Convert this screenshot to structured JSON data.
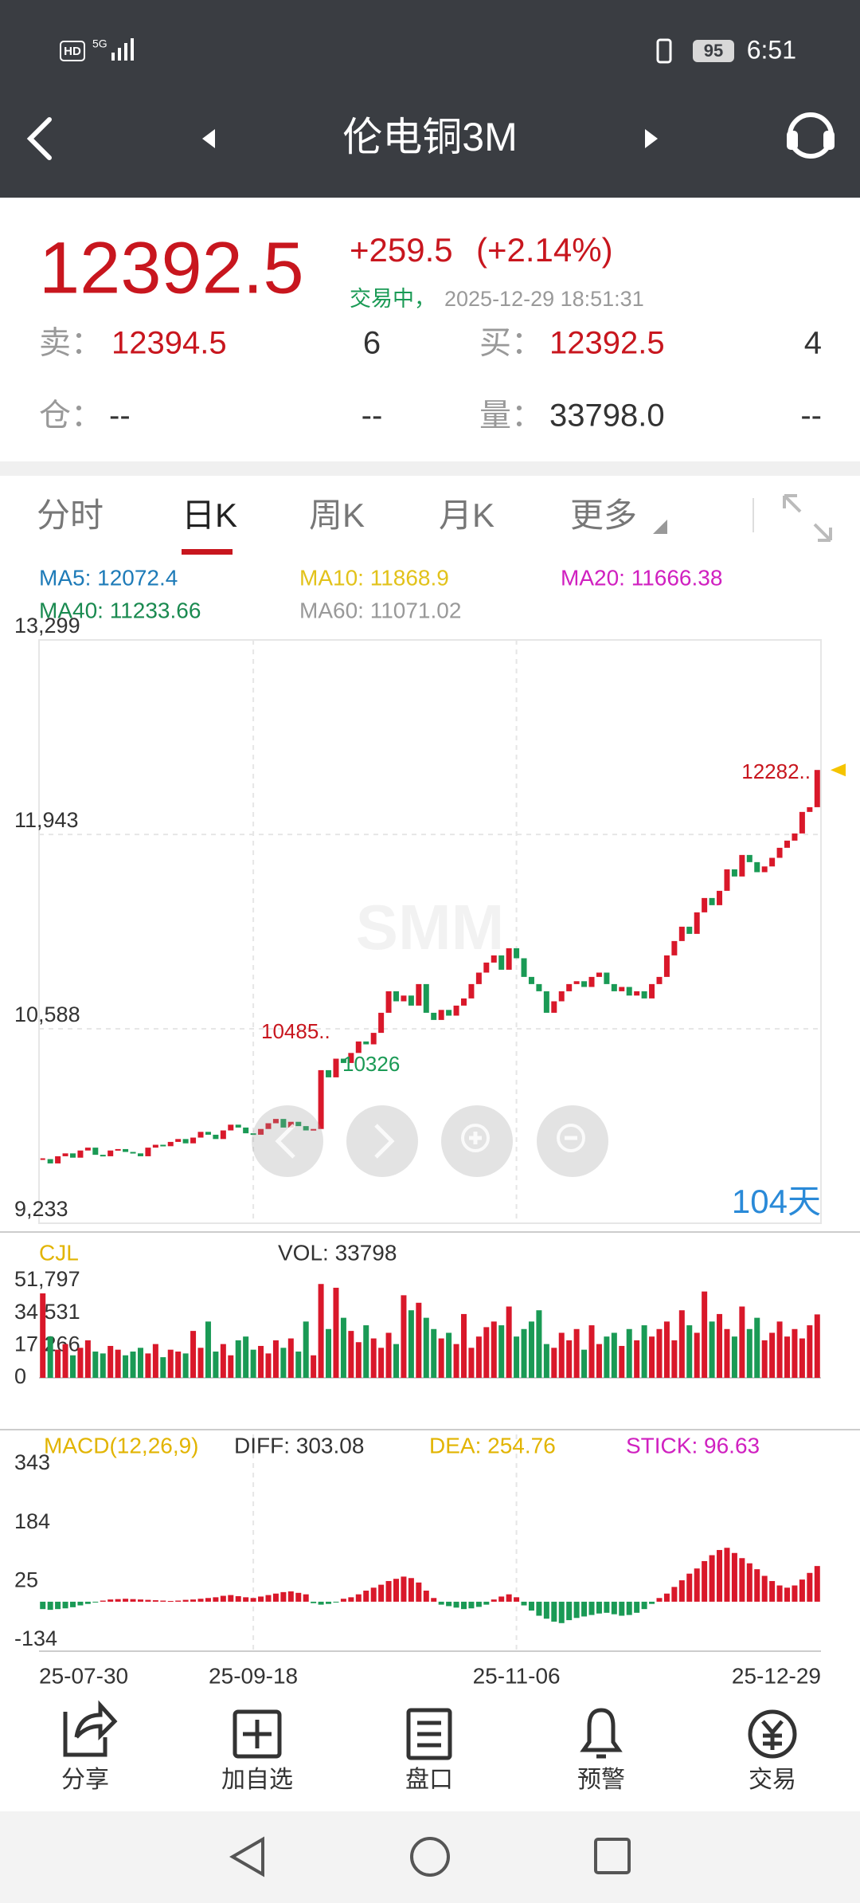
{
  "status_bar": {
    "network": "HD",
    "signal": "5G",
    "battery": "95",
    "time": "6:51"
  },
  "header": {
    "title": "伦电铜3M"
  },
  "quote": {
    "price": "12392.5",
    "change": "+259.5",
    "change_pct": "(+2.14%)",
    "status": "交易中，",
    "datetime": "2025-12-29 18:51:31",
    "sell_label": "卖：",
    "sell_price": "12394.5",
    "sell_qty": "6",
    "buy_label": "买：",
    "buy_price": "12392.5",
    "buy_qty": "4",
    "position_label": "仓：",
    "position": "--",
    "position_chg": "--",
    "volume_label": "量：",
    "volume": "33798.0",
    "volume_chg": "--"
  },
  "tabs": [
    "分时",
    "日K",
    "周K",
    "月K",
    "更多"
  ],
  "active_tab": 1,
  "ma_legend": [
    {
      "label": "MA5: 12072.4",
      "color": "#1e7bb8"
    },
    {
      "label": "MA10: 11868.9",
      "color": "#e2c21a"
    },
    {
      "label": "MA20: 11666.38",
      "color": "#d020c0"
    },
    {
      "label": "MA40: 11233.66",
      "color": "#1a8a50"
    },
    {
      "label": "MA60: 11071.02",
      "color": "#999999"
    }
  ],
  "watermark": "SMM",
  "chart_data": [
    {
      "type": "candlestick",
      "up_color": "#d9182a",
      "down_color": "#1a9a55",
      "values": [
        9680,
        9650,
        9700,
        9720,
        9690,
        9740,
        9760,
        9710,
        9700,
        9740,
        9750,
        9730,
        9720,
        9700,
        9760,
        9780,
        9770,
        9800,
        9820,
        9790,
        9830,
        9870,
        9850,
        9820,
        9880,
        9920,
        9900,
        9860,
        9850,
        9890,
        9930,
        9960,
        9900,
        9940,
        9910,
        9880,
        9890,
        10300,
        10250,
        10380,
        10350,
        10420,
        10500,
        10480,
        10560,
        10700,
        10850,
        10780,
        10820,
        10750,
        10900,
        10700,
        10650,
        10720,
        10680,
        10750,
        10800,
        10900,
        10980,
        11050,
        11100,
        11000,
        11150,
        11080,
        10950,
        10900,
        10850,
        10700,
        10780,
        10850,
        10900,
        10920,
        10880,
        10950,
        10980,
        10900,
        10850,
        10880,
        10820,
        10850,
        10800,
        10900,
        10950,
        11100,
        11200,
        11300,
        11250,
        11400,
        11500,
        11450,
        11550,
        11700,
        11650,
        11800,
        11750,
        11680,
        11720,
        11780,
        11850,
        11900,
        11950,
        12100,
        12133,
        12392.5
      ],
      "ylim": [
        9233,
        13299
      ],
      "yticks": [
        {
          "value": 9233,
          "label": "9,233"
        },
        {
          "value": 10588,
          "label": "10,588"
        },
        {
          "value": 11943,
          "label": "11,943"
        },
        {
          "value": 13299,
          "label": "13,299"
        }
      ],
      "xticks": [
        {
          "value": 0,
          "label": "25-07-30"
        },
        {
          "value": 28,
          "label": "25-09-18"
        },
        {
          "value": 63,
          "label": "25-11-06"
        },
        {
          "value": 103,
          "label": "25-12-29"
        }
      ],
      "annotations": [
        "10485..",
        "10326",
        "12282.."
      ],
      "days_label": "104天",
      "grid": true
    },
    {
      "type": "bar",
      "title": "CJL",
      "subtitle": "VOL: 33798",
      "title_color": "#e2b400",
      "values": [
        45000,
        22000,
        15000,
        18000,
        12000,
        16000,
        20000,
        14000,
        13000,
        17000,
        15000,
        12000,
        14000,
        16000,
        13000,
        18000,
        11000,
        15000,
        14000,
        13000,
        25000,
        16000,
        30000,
        14000,
        18000,
        12000,
        20000,
        22000,
        15000,
        17000,
        13000,
        20000,
        16000,
        21000,
        14000,
        30000,
        12000,
        50000,
        26000,
        48000,
        32000,
        25000,
        19000,
        28000,
        21000,
        16000,
        24000,
        18000,
        44000,
        36000,
        40000,
        32000,
        26000,
        21000,
        24000,
        18000,
        34000,
        16000,
        22000,
        27000,
        30000,
        28000,
        38000,
        22000,
        26000,
        30000,
        36000,
        18000,
        16000,
        24000,
        20000,
        26000,
        15000,
        28000,
        18000,
        22000,
        24000,
        17000,
        26000,
        20000,
        28000,
        22000,
        26000,
        30000,
        20000,
        36000,
        28000,
        24000,
        46000,
        30000,
        34000,
        26000,
        22000,
        38000,
        26000,
        32000,
        20000,
        24000,
        30000,
        22000,
        26000,
        21000,
        28000,
        33798
      ],
      "ylim": [
        0,
        51797
      ],
      "yticks": [
        0,
        {
          "value": 17266,
          "label": "17,266"
        },
        {
          "value": 34531,
          "label": "34,531"
        },
        {
          "value": 51797,
          "label": "51,797"
        }
      ]
    },
    {
      "type": "macd",
      "title": "MACD(12,26,9)",
      "legend": [
        {
          "label": "DIFF: 303.08",
          "color": "#333333"
        },
        {
          "label": "DEA: 254.76",
          "color": "#e2b400"
        },
        {
          "label": "STICK: 96.63",
          "color": "#d020c0"
        }
      ],
      "title_color": "#e2b400",
      "up_color": "#d9182a",
      "down_color": "#1a9a55",
      "values": [
        -20,
        -22,
        -20,
        -18,
        -15,
        -10,
        -6,
        -2,
        3,
        6,
        7,
        8,
        7,
        6,
        5,
        4,
        3,
        2,
        3,
        5,
        6,
        8,
        10,
        12,
        16,
        18,
        15,
        12,
        10,
        14,
        18,
        22,
        26,
        28,
        24,
        20,
        -4,
        -8,
        -6,
        -2,
        8,
        12,
        20,
        30,
        38,
        46,
        56,
        62,
        68,
        64,
        52,
        30,
        10,
        -8,
        -12,
        -16,
        -20,
        -18,
        -14,
        -8,
        6,
        14,
        20,
        12,
        -10,
        -24,
        -38,
        -46,
        -54,
        -58,
        -50,
        -44,
        -40,
        -36,
        -32,
        -30,
        -34,
        -38,
        -36,
        -30,
        -20,
        -6,
        10,
        22,
        40,
        58,
        76,
        90,
        110,
        126,
        140,
        146,
        132,
        118,
        104,
        88,
        70,
        56,
        44,
        38,
        44,
        60,
        78,
        96.63
      ],
      "ylim": [
        -134,
        343
      ],
      "yticks": [
        -134,
        25,
        184,
        343
      ]
    }
  ],
  "toolbar": [
    "分享",
    "加自选",
    "盘口",
    "预警",
    "交易"
  ]
}
